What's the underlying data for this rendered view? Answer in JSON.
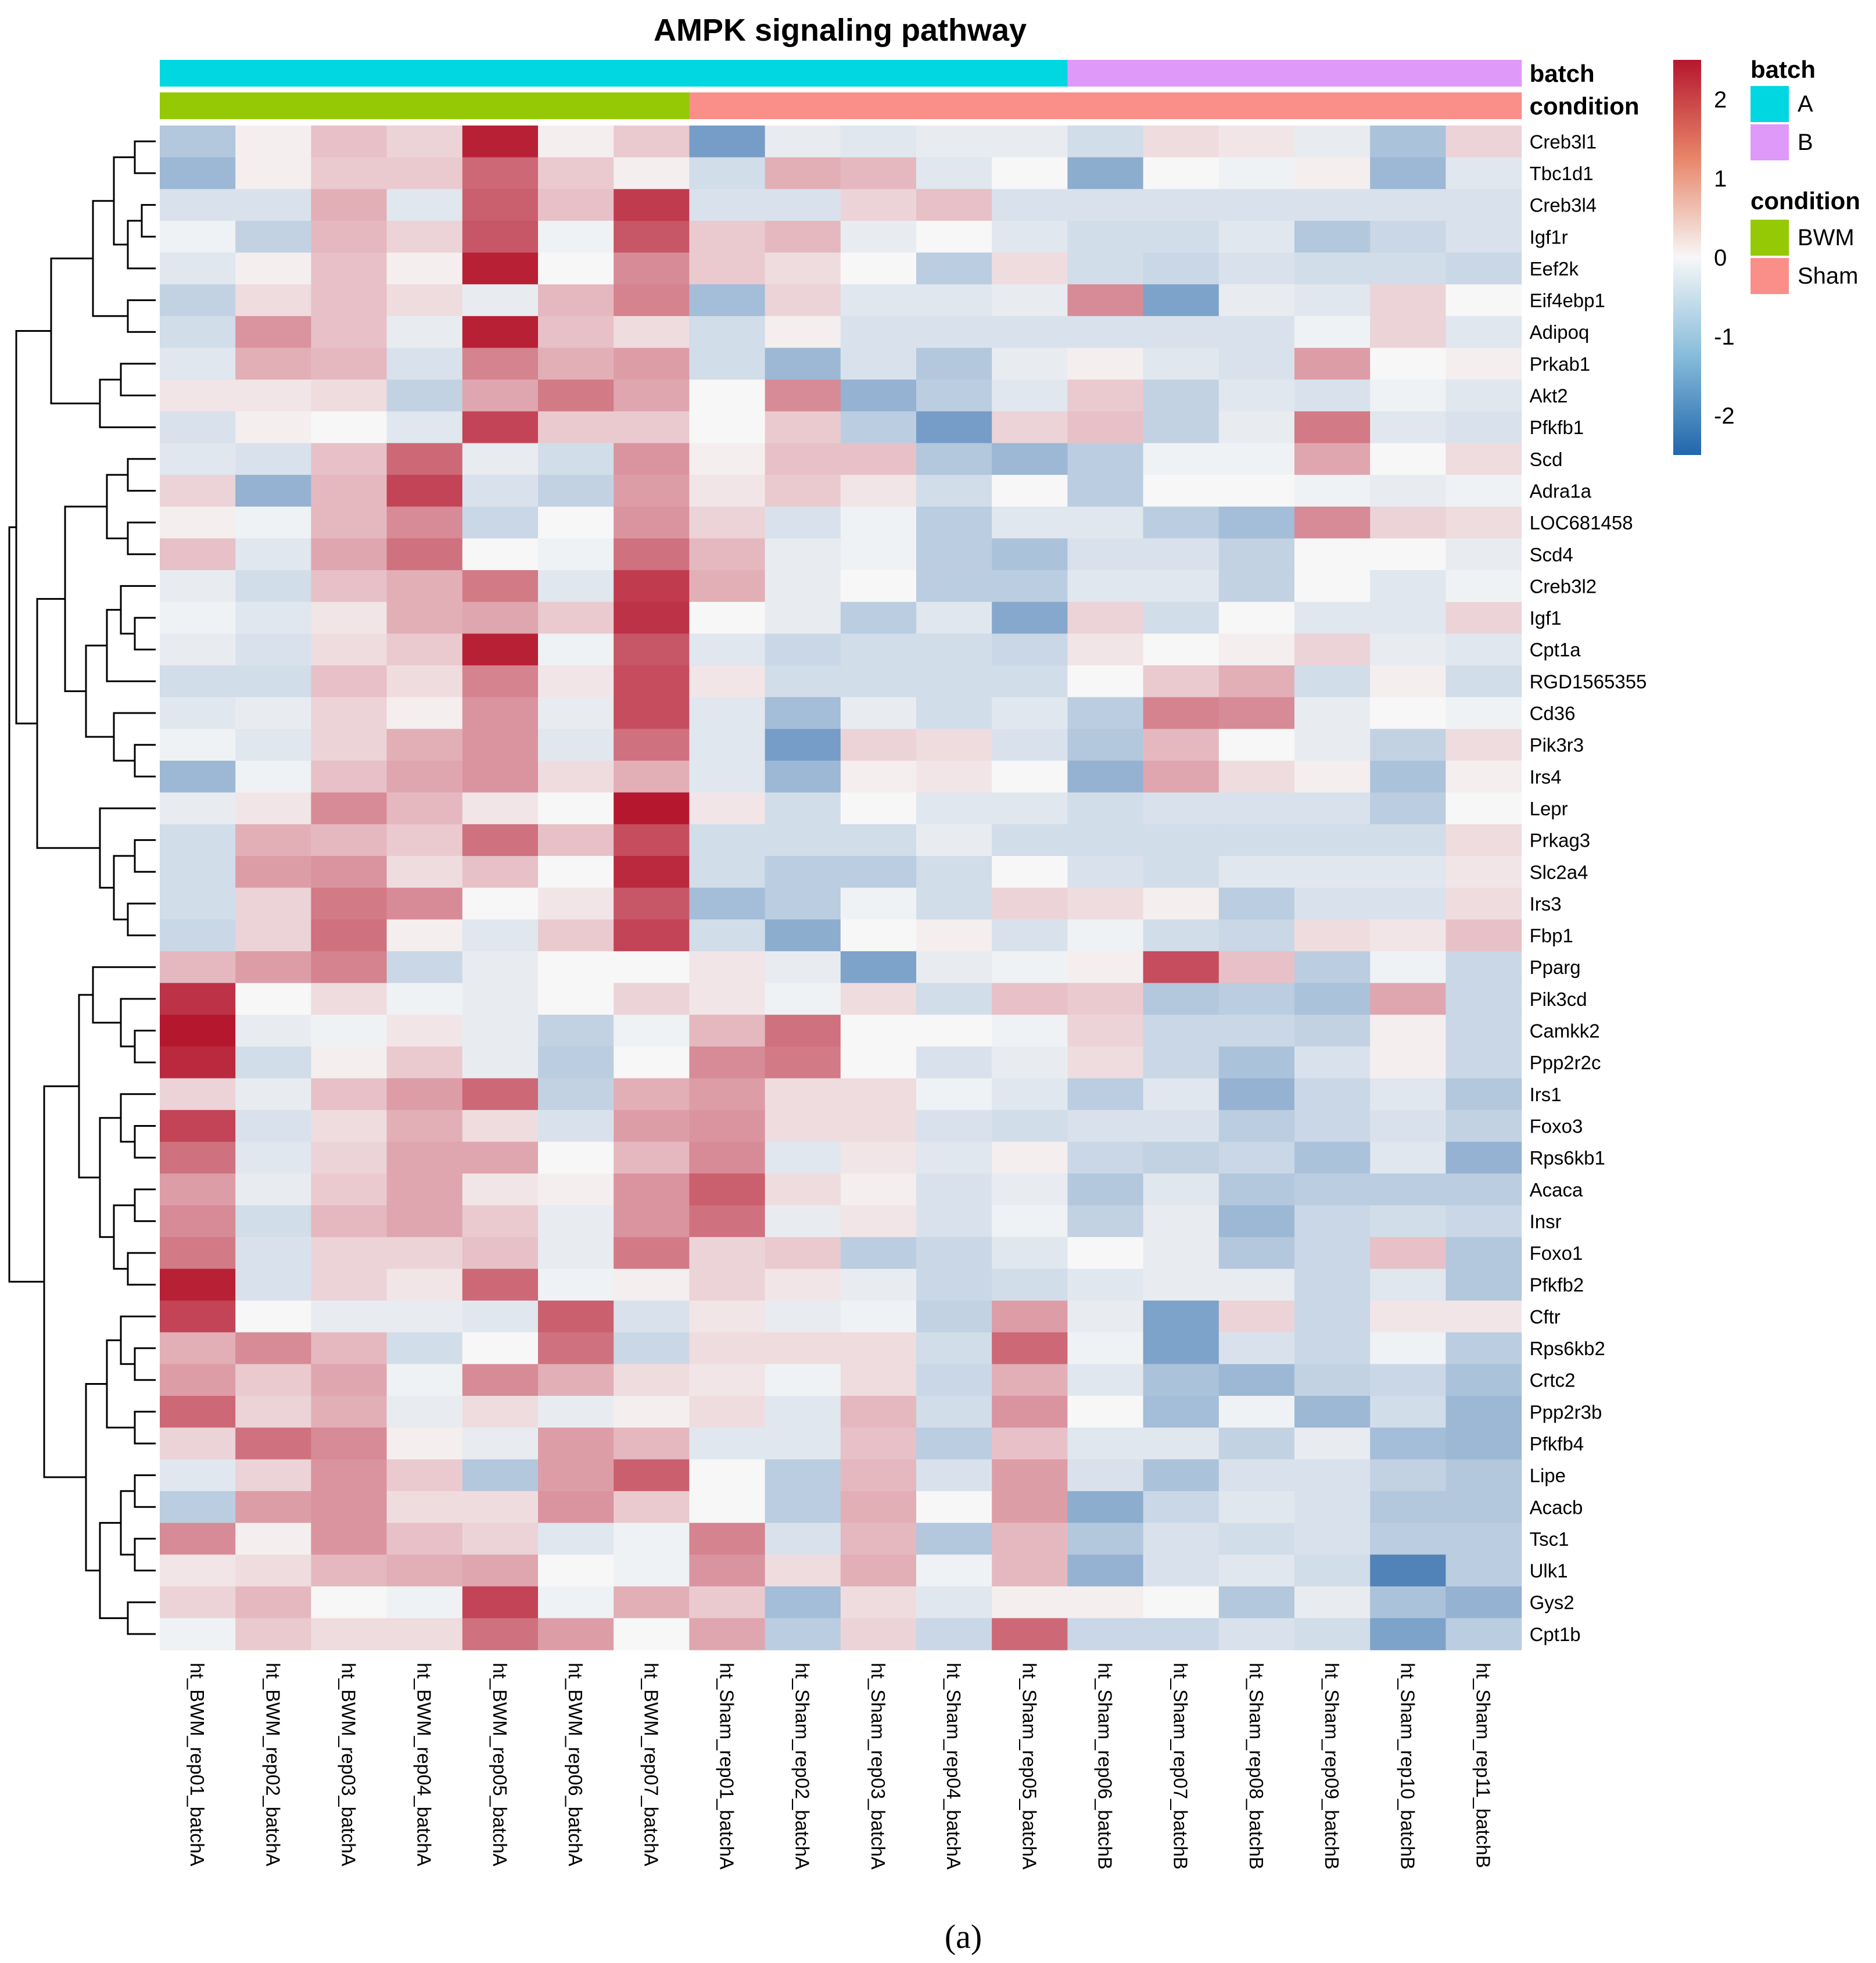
{
  "chart_data": {
    "type": "heatmap",
    "title": "AMPK signaling pathway",
    "caption": "(a)",
    "rows": [
      "Creb3l1",
      "Tbc1d1",
      "Creb3l4",
      "Igf1r",
      "Eef2k",
      "Eif4ebp1",
      "Adipoq",
      "Prkab1",
      "Akt2",
      "Pfkfb1",
      "Scd",
      "Adra1a",
      "LOC681458",
      "Scd4",
      "Creb3l2",
      "Igf1",
      "Cpt1a",
      "RGD1565355",
      "Cd36",
      "Pik3r3",
      "Irs4",
      "Lepr",
      "Prkag3",
      "Slc2a4",
      "Irs3",
      "Fbp1",
      "Pparg",
      "Pik3cd",
      "Camkk2",
      "Ppp2r2c",
      "Irs1",
      "Foxo3",
      "Rps6kb1",
      "Acaca",
      "Insr",
      "Foxo1",
      "Pfkfb2",
      "Cftr",
      "Rps6kb2",
      "Crtc2",
      "Ppp2r3b",
      "Pfkfb4",
      "Lipe",
      "Acacb",
      "Tsc1",
      "Ulk1",
      "Gys2",
      "Cpt1b"
    ],
    "columns": [
      "ht_BWM_rep01_batchA",
      "ht_BWM_rep02_batchA",
      "ht_BWM_rep03_batchA",
      "ht_BWM_rep04_batchA",
      "ht_BWM_rep05_batchA",
      "ht_BWM_rep06_batchA",
      "ht_BWM_rep07_batchA",
      "ht_Sham_rep01_batchA",
      "ht_Sham_rep02_batchA",
      "ht_Sham_rep03_batchA",
      "ht_Sham_rep04_batchA",
      "ht_Sham_rep05_batchA",
      "ht_Sham_rep06_batchB",
      "ht_Sham_rep07_batchB",
      "ht_Sham_rep08_batchB",
      "ht_Sham_rep09_batchB",
      "ht_Sham_rep10_batchB",
      "ht_Sham_rep11_batchB"
    ],
    "values": [
      [
        -0.9,
        0.1,
        0.6,
        0.4,
        2.4,
        0.1,
        0.5,
        -1.7,
        -0.2,
        -0.3,
        -0.2,
        -0.2,
        -0.5,
        0.3,
        0.2,
        -0.2,
        -1.0,
        0.4
      ],
      [
        -1.2,
        0.1,
        0.5,
        0.5,
        1.6,
        0.5,
        0.1,
        -0.5,
        0.8,
        0.7,
        -0.3,
        0.0,
        -1.4,
        0.0,
        -0.1,
        0.1,
        -1.2,
        -0.3
      ],
      [
        -0.4,
        -0.4,
        0.8,
        -0.3,
        1.7,
        0.6,
        2.1,
        -0.4,
        -0.4,
        0.4,
        0.6,
        -0.4,
        -0.4,
        -0.4,
        -0.4,
        -0.4,
        -0.4,
        -0.4
      ],
      [
        -0.1,
        -0.7,
        0.7,
        0.4,
        1.8,
        -0.1,
        1.8,
        0.5,
        0.7,
        -0.2,
        0.0,
        -0.3,
        -0.5,
        -0.5,
        -0.3,
        -0.9,
        -0.6,
        -0.4
      ],
      [
        -0.3,
        0.1,
        0.6,
        0.1,
        2.4,
        0.0,
        1.2,
        0.5,
        0.3,
        0.0,
        -0.8,
        0.3,
        -0.5,
        -0.6,
        -0.4,
        -0.5,
        -0.5,
        -0.6
      ],
      [
        -0.7,
        0.3,
        0.6,
        0.3,
        -0.2,
        0.7,
        1.3,
        -1.1,
        0.4,
        -0.3,
        -0.3,
        -0.2,
        1.2,
        -1.6,
        -0.2,
        -0.3,
        0.4,
        0.0
      ],
      [
        -0.5,
        1.1,
        0.6,
        -0.2,
        2.4,
        0.6,
        0.3,
        -0.5,
        0.1,
        -0.4,
        -0.4,
        -0.4,
        -0.4,
        -0.4,
        -0.4,
        -0.1,
        0.4,
        -0.3
      ],
      [
        -0.3,
        0.8,
        0.7,
        -0.4,
        1.3,
        0.8,
        1.0,
        -0.5,
        -1.2,
        -0.4,
        -0.9,
        -0.2,
        0.1,
        -0.3,
        -0.4,
        1.0,
        0.0,
        0.1
      ],
      [
        0.2,
        0.2,
        0.3,
        -0.7,
        0.9,
        1.4,
        0.9,
        0.0,
        1.2,
        -1.3,
        -0.8,
        -0.3,
        0.5,
        -0.7,
        -0.3,
        -0.4,
        -0.1,
        -0.3
      ],
      [
        -0.4,
        0.1,
        0.0,
        -0.3,
        2.0,
        0.5,
        0.5,
        0.0,
        0.5,
        -0.8,
        -1.7,
        0.4,
        0.6,
        -0.7,
        -0.2,
        1.4,
        -0.3,
        -0.4
      ],
      [
        -0.3,
        -0.4,
        0.6,
        1.6,
        -0.2,
        -0.5,
        1.1,
        0.1,
        0.6,
        0.6,
        -0.9,
        -1.2,
        -0.8,
        -0.1,
        -0.1,
        0.9,
        0.0,
        0.3
      ],
      [
        0.4,
        -1.3,
        0.7,
        2.0,
        -0.4,
        -0.7,
        1.0,
        0.2,
        0.5,
        0.2,
        -0.5,
        0.0,
        -0.8,
        0.0,
        0.0,
        -0.1,
        -0.2,
        -0.1
      ],
      [
        0.1,
        -0.1,
        0.7,
        1.2,
        -0.6,
        0.0,
        1.1,
        0.4,
        -0.4,
        -0.1,
        -0.8,
        -0.3,
        -0.3,
        -0.8,
        -1.1,
        1.2,
        0.4,
        0.3
      ],
      [
        0.6,
        -0.3,
        0.9,
        1.5,
        0.0,
        -0.1,
        1.5,
        0.7,
        -0.2,
        -0.1,
        -0.8,
        -1.0,
        -0.4,
        -0.4,
        -0.7,
        0.0,
        0.0,
        -0.2
      ],
      [
        -0.2,
        -0.5,
        0.6,
        0.8,
        1.4,
        -0.3,
        2.1,
        0.8,
        -0.2,
        0.0,
        -0.8,
        -0.8,
        -0.3,
        -0.3,
        -0.7,
        0.0,
        -0.3,
        -0.1
      ],
      [
        -0.1,
        -0.3,
        0.2,
        0.8,
        0.9,
        0.5,
        2.2,
        0.0,
        -0.2,
        -0.8,
        -0.3,
        -1.5,
        0.4,
        -0.5,
        0.0,
        -0.3,
        -0.3,
        0.4
      ],
      [
        -0.2,
        -0.4,
        0.3,
        0.5,
        2.4,
        -0.1,
        1.8,
        -0.3,
        -0.6,
        -0.5,
        -0.5,
        -0.6,
        0.2,
        0.0,
        0.1,
        0.4,
        -0.2,
        -0.3
      ],
      [
        -0.5,
        -0.5,
        0.6,
        0.3,
        1.3,
        0.2,
        1.9,
        0.2,
        -0.5,
        -0.5,
        -0.5,
        -0.5,
        0.0,
        0.5,
        0.8,
        -0.5,
        0.1,
        -0.5
      ],
      [
        -0.3,
        -0.2,
        0.4,
        0.1,
        1.1,
        -0.2,
        1.9,
        -0.3,
        -1.1,
        -0.2,
        -0.5,
        -0.3,
        -0.8,
        1.3,
        1.2,
        -0.2,
        0.0,
        -0.1
      ],
      [
        -0.1,
        -0.3,
        0.4,
        0.8,
        1.1,
        -0.3,
        1.5,
        -0.3,
        -1.7,
        0.4,
        0.3,
        -0.4,
        -0.9,
        0.7,
        0.0,
        -0.2,
        -0.7,
        0.3
      ],
      [
        -1.2,
        -0.1,
        0.6,
        0.9,
        1.1,
        0.3,
        0.8,
        -0.3,
        -1.2,
        0.1,
        0.2,
        0.0,
        -1.3,
        0.9,
        0.3,
        0.1,
        -1.0,
        0.1
      ],
      [
        -0.2,
        0.2,
        1.2,
        0.7,
        0.2,
        0.0,
        2.5,
        0.2,
        -0.5,
        0.0,
        -0.3,
        -0.3,
        -0.5,
        -0.4,
        -0.4,
        -0.4,
        -0.8,
        0.0
      ],
      [
        -0.5,
        0.8,
        0.7,
        0.5,
        1.5,
        0.6,
        1.9,
        -0.5,
        -0.5,
        -0.5,
        -0.2,
        -0.5,
        -0.5,
        -0.5,
        -0.5,
        -0.5,
        -0.5,
        0.3
      ],
      [
        -0.5,
        1.0,
        1.1,
        0.3,
        0.6,
        0.0,
        2.3,
        -0.5,
        -0.8,
        -0.8,
        -0.5,
        0.0,
        -0.4,
        -0.5,
        -0.3,
        -0.3,
        -0.3,
        0.2
      ],
      [
        -0.5,
        0.4,
        1.4,
        1.2,
        0.0,
        0.2,
        1.8,
        -1.1,
        -0.8,
        -0.1,
        -0.5,
        0.4,
        0.3,
        0.1,
        -0.8,
        -0.4,
        -0.4,
        0.3
      ],
      [
        -0.6,
        0.4,
        1.5,
        0.1,
        -0.3,
        0.5,
        2.0,
        -0.5,
        -1.4,
        0.0,
        0.1,
        -0.4,
        -0.1,
        -0.5,
        -0.6,
        0.3,
        0.2,
        0.6
      ],
      [
        0.7,
        1.0,
        1.3,
        -0.6,
        -0.2,
        0.0,
        0.0,
        0.2,
        -0.2,
        -1.6,
        -0.2,
        -0.1,
        0.1,
        1.9,
        0.6,
        -0.8,
        -0.1,
        -0.6
      ],
      [
        2.2,
        0.0,
        0.3,
        -0.1,
        -0.2,
        0.0,
        0.4,
        0.2,
        -0.1,
        0.3,
        -0.5,
        0.6,
        0.5,
        -0.9,
        -0.8,
        -1.0,
        0.9,
        -0.6
      ],
      [
        2.5,
        -0.2,
        -0.1,
        0.2,
        -0.2,
        -0.7,
        -0.1,
        0.7,
        1.5,
        0.0,
        0.0,
        -0.1,
        0.4,
        -0.6,
        -0.6,
        -0.7,
        0.1,
        -0.6
      ],
      [
        2.3,
        -0.5,
        0.1,
        0.5,
        -0.2,
        -0.8,
        0.0,
        1.2,
        1.4,
        0.0,
        -0.4,
        -0.2,
        0.3,
        -0.6,
        -1.0,
        -0.4,
        0.1,
        -0.6
      ],
      [
        0.4,
        -0.2,
        0.6,
        1.0,
        1.6,
        -0.7,
        0.8,
        1.0,
        0.3,
        0.3,
        -0.1,
        -0.3,
        -0.8,
        -0.3,
        -1.3,
        -0.6,
        -0.3,
        -0.9
      ],
      [
        2.0,
        -0.4,
        0.3,
        0.8,
        0.3,
        -0.4,
        1.0,
        1.1,
        0.3,
        0.3,
        -0.4,
        -0.5,
        -0.4,
        -0.4,
        -0.8,
        -0.6,
        -0.4,
        -0.7
      ],
      [
        1.5,
        -0.3,
        0.4,
        0.9,
        0.9,
        0.0,
        0.7,
        1.2,
        -0.3,
        0.2,
        -0.3,
        0.1,
        -0.6,
        -0.7,
        -0.6,
        -1.0,
        -0.3,
        -1.3
      ],
      [
        1.0,
        -0.2,
        0.5,
        0.9,
        0.2,
        0.1,
        1.1,
        1.7,
        0.3,
        0.1,
        -0.4,
        -0.2,
        -0.9,
        -0.3,
        -0.9,
        -0.8,
        -0.8,
        -0.8
      ],
      [
        1.2,
        -0.5,
        0.7,
        0.9,
        0.5,
        -0.2,
        1.1,
        1.5,
        -0.2,
        0.2,
        -0.4,
        -0.1,
        -0.7,
        -0.2,
        -1.2,
        -0.6,
        -0.5,
        -0.6
      ],
      [
        1.4,
        -0.4,
        0.4,
        0.4,
        0.6,
        -0.2,
        1.4,
        0.4,
        0.5,
        -0.8,
        -0.6,
        -0.3,
        0.0,
        -0.2,
        -0.9,
        -0.6,
        0.6,
        -0.9
      ],
      [
        2.4,
        -0.4,
        0.4,
        0.2,
        1.6,
        -0.1,
        0.1,
        0.4,
        0.2,
        -0.2,
        -0.6,
        -0.5,
        -0.3,
        -0.2,
        -0.2,
        -0.6,
        -0.3,
        -0.9
      ],
      [
        2.0,
        0.0,
        -0.2,
        -0.2,
        -0.3,
        1.7,
        -0.4,
        0.2,
        -0.2,
        -0.1,
        -0.7,
        1.0,
        -0.2,
        -1.6,
        0.4,
        -0.6,
        0.2,
        0.2
      ],
      [
        0.8,
        1.2,
        0.7,
        -0.5,
        0.0,
        1.5,
        -0.6,
        0.3,
        0.3,
        0.3,
        -0.5,
        1.6,
        -0.1,
        -1.6,
        -0.4,
        -0.6,
        -0.1,
        -0.8
      ],
      [
        1.0,
        0.5,
        0.9,
        -0.1,
        1.2,
        0.8,
        0.3,
        0.2,
        -0.1,
        0.3,
        -0.6,
        0.8,
        -0.3,
        -1.0,
        -1.2,
        -0.7,
        -0.6,
        -1.0
      ],
      [
        1.6,
        0.4,
        0.8,
        -0.2,
        0.3,
        -0.2,
        0.1,
        0.3,
        -0.3,
        0.7,
        -0.5,
        1.1,
        0.0,
        -1.1,
        -0.1,
        -1.2,
        -0.5,
        -1.2
      ],
      [
        0.4,
        1.5,
        1.2,
        0.1,
        -0.2,
        1.0,
        0.7,
        -0.3,
        -0.3,
        0.6,
        -0.8,
        0.6,
        -0.3,
        -0.3,
        -0.7,
        -0.2,
        -1.1,
        -1.2
      ],
      [
        -0.3,
        0.4,
        1.1,
        0.5,
        -0.9,
        1.0,
        1.7,
        0.0,
        -0.8,
        0.7,
        -0.4,
        1.0,
        -0.4,
        -1.0,
        -0.4,
        -0.4,
        -0.7,
        -0.9
      ],
      [
        -0.8,
        1.0,
        1.1,
        0.3,
        0.3,
        1.1,
        0.5,
        0.0,
        -0.8,
        0.8,
        0.0,
        1.0,
        -1.4,
        -0.6,
        -0.3,
        -0.4,
        -0.9,
        -0.9
      ],
      [
        1.2,
        0.1,
        1.1,
        0.6,
        0.4,
        -0.3,
        -0.1,
        1.3,
        -0.4,
        0.7,
        -0.9,
        0.7,
        -0.9,
        -0.4,
        -0.5,
        -0.4,
        -0.8,
        -0.8
      ],
      [
        0.2,
        0.3,
        0.7,
        0.8,
        0.9,
        0.0,
        -0.1,
        1.1,
        0.3,
        0.8,
        -0.1,
        0.7,
        -1.3,
        -0.4,
        -0.3,
        -0.5,
        -2.2,
        -0.8
      ],
      [
        0.4,
        0.7,
        0.0,
        -0.1,
        2.0,
        -0.1,
        0.8,
        0.5,
        -1.1,
        0.3,
        -0.3,
        0.1,
        0.1,
        0.0,
        -0.9,
        -0.2,
        -1.0,
        -1.3
      ],
      [
        -0.1,
        0.5,
        0.3,
        0.3,
        1.5,
        1.0,
        0.0,
        0.9,
        -0.8,
        0.4,
        -0.6,
        1.6,
        -0.6,
        -0.6,
        -0.4,
        -0.5,
        -1.6,
        -0.8
      ]
    ],
    "color_scale": {
      "min": -2.5,
      "max": 2.5,
      "low": "#3a73b0",
      "mid": "#f7f7f7",
      "high": "#b5172e",
      "ticks": [
        "2",
        "1",
        "0",
        "-1",
        "-2"
      ]
    },
    "annotations": [
      {
        "name": "batch",
        "values": [
          "A",
          "A",
          "A",
          "A",
          "A",
          "A",
          "A",
          "A",
          "A",
          "A",
          "A",
          "A",
          "B",
          "B",
          "B",
          "B",
          "B",
          "B"
        ]
      },
      {
        "name": "condition",
        "values": [
          "BWM",
          "BWM",
          "BWM",
          "BWM",
          "BWM",
          "BWM",
          "BWM",
          "Sham",
          "Sham",
          "Sham",
          "Sham",
          "Sham",
          "Sham",
          "Sham",
          "Sham",
          "Sham",
          "Sham",
          "Sham"
        ]
      }
    ],
    "legend": [
      {
        "title": "batch",
        "items": [
          {
            "label": "A",
            "color": "#00d7e0"
          },
          {
            "label": "B",
            "color": "#df99f9"
          }
        ]
      },
      {
        "title": "condition",
        "items": [
          {
            "label": "BWM",
            "color": "#95c906"
          },
          {
            "label": "Sham",
            "color": "#fa8e88"
          }
        ]
      }
    ]
  }
}
